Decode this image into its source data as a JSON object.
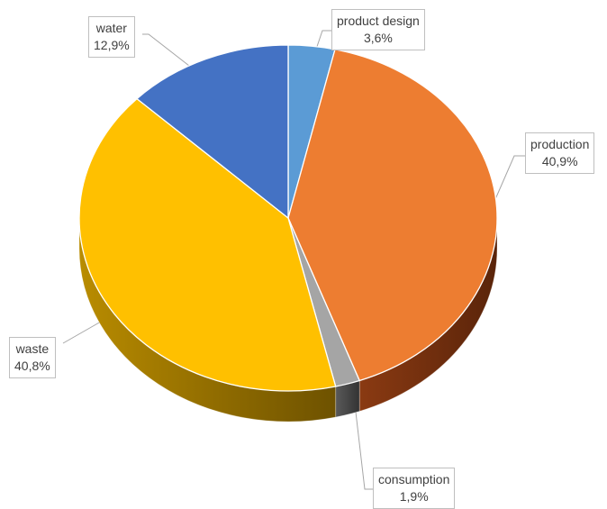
{
  "chart_data": {
    "type": "pie",
    "title": "",
    "style": "3d",
    "slices": [
      {
        "label": "product design",
        "value": 3.6,
        "display": "3,6%",
        "color": "#5B9BD5"
      },
      {
        "label": "production",
        "value": 40.9,
        "display": "40,9%",
        "color": "#ED7D31"
      },
      {
        "label": "consumption",
        "value": 1.9,
        "display": "1,9%",
        "color": "#A5A5A5"
      },
      {
        "label": "waste",
        "value": 40.8,
        "display": "40,8%",
        "color": "#FFC000"
      },
      {
        "label": "water",
        "value": 12.9,
        "display": "12,9%",
        "color": "#4472C4"
      }
    ]
  }
}
